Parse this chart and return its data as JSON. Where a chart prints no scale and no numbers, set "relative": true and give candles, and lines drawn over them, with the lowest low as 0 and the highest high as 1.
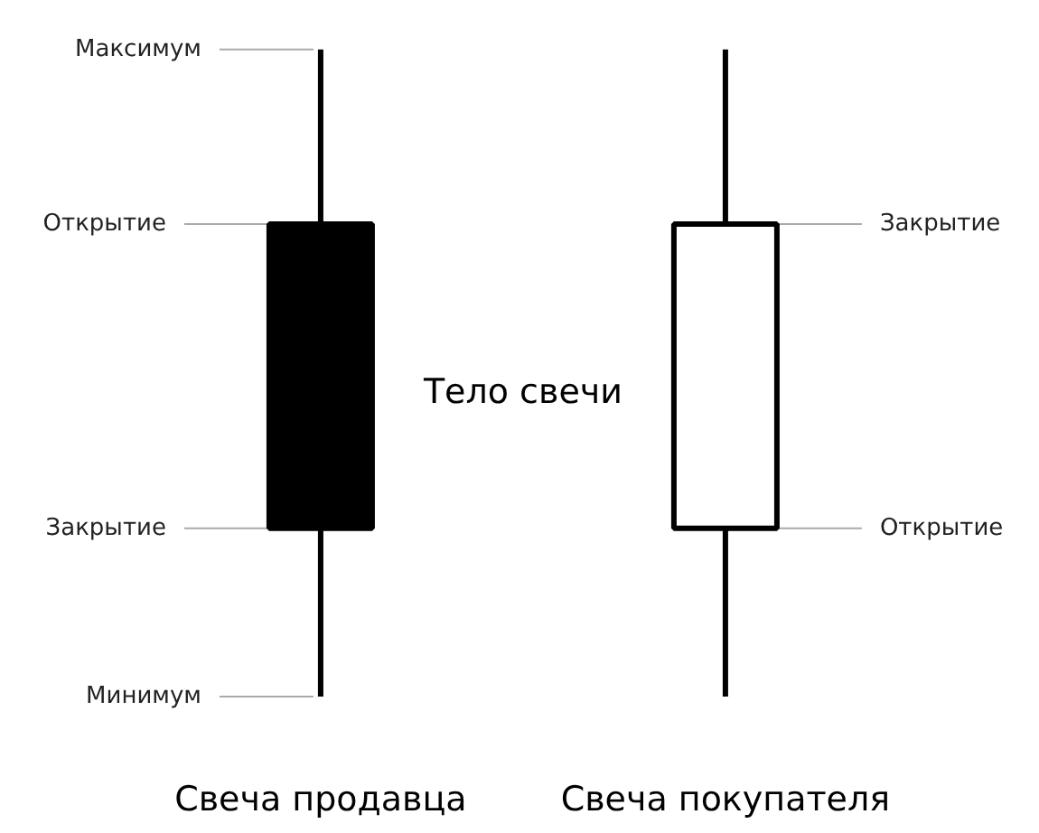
{
  "chart_data": {
    "type": "candlestick",
    "relative": true,
    "categories": [
      "Свеча продавца",
      "Свеча покупателя"
    ],
    "ohlc": [
      [
        0.73,
        1,
        0,
        0.26
      ],
      [
        0.26,
        1,
        0,
        0.73
      ]
    ],
    "colors": [
      "#000000",
      "#ffffff"
    ],
    "color": "#000000",
    "annotations": [
      {
        "text": "Максимум",
        "x": "Свеча продавца",
        "y": 1
      },
      {
        "text": "Открытие",
        "x": "Свеча продавца",
        "y": 0.73
      },
      {
        "text": "Закрытие",
        "x": "Свеча продавца",
        "y": 0.26
      },
      {
        "text": "Минимум",
        "x": "Свеча продавца",
        "y": 0
      },
      {
        "text": "Закрытие",
        "x": "Свеча покупателя",
        "y": 0.73
      },
      {
        "text": "Открытие",
        "x": "Свеча покупателя",
        "y": 0.26
      },
      "Тело свечи"
    ]
  }
}
